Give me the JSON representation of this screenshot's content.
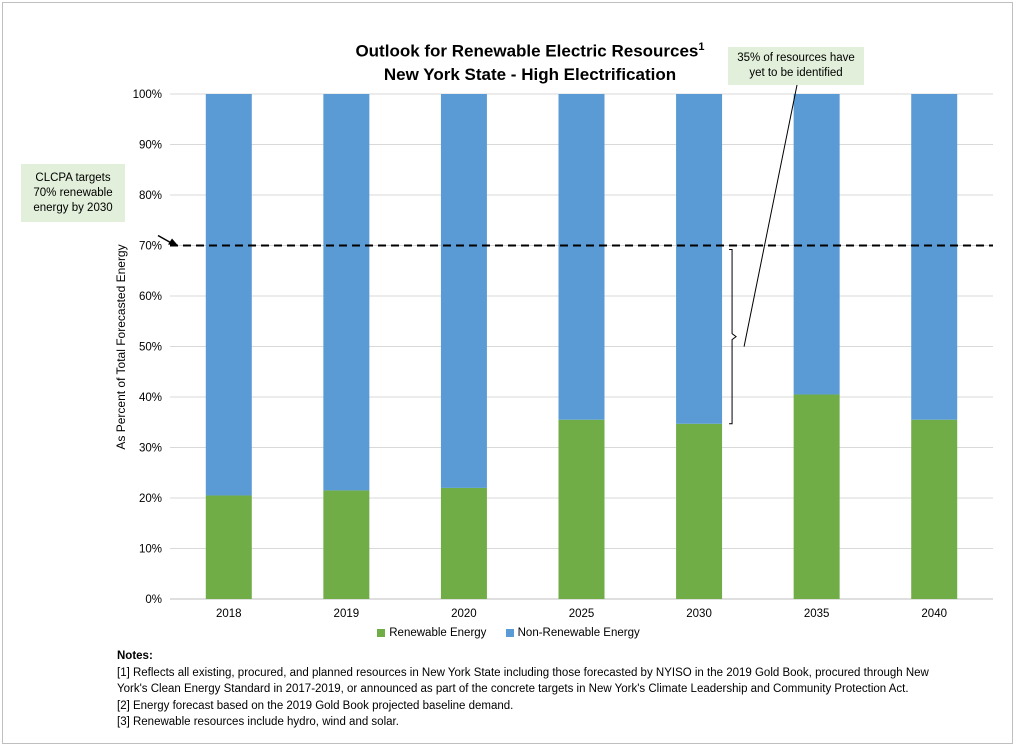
{
  "chart_data": {
    "type": "bar",
    "stacked": true,
    "title_line1": "Outlook for Renewable Electric Resources",
    "title_sup": "1",
    "title_line2": "New York State - High Electrification",
    "ylabel": "As Percent of Total Forecasted Energy",
    "ylim": [
      0,
      100
    ],
    "yticks": [
      "0%",
      "10%",
      "20%",
      "30%",
      "40%",
      "50%",
      "60%",
      "70%",
      "80%",
      "90%",
      "100%"
    ],
    "categories": [
      "2018",
      "2019",
      "2020",
      "2025",
      "2030",
      "2035",
      "2040"
    ],
    "series": [
      {
        "name": "Renewable Energy",
        "color": "#70ad47",
        "values": [
          20.5,
          21.5,
          22,
          35.5,
          34.7,
          40.5,
          35.5
        ]
      },
      {
        "name": "Non-Renewable Energy",
        "color": "#5b9bd5",
        "values": [
          79.5,
          78.5,
          78,
          64.5,
          65.3,
          59.5,
          64.5
        ]
      }
    ],
    "target_line": {
      "value": 70,
      "style": "dashed"
    },
    "bracket": {
      "category": "2030",
      "from": 34.7,
      "to": 70
    },
    "grid": true,
    "legend_position": "bottom",
    "annotations": {
      "left": [
        "CLCPA targets",
        "70% renewable",
        "energy by 2030"
      ],
      "right": [
        "35% of resources have",
        "yet to be identified"
      ]
    }
  },
  "notes": {
    "title": "Notes:",
    "lines": [
      "[1] Reflects all existing, procured, and planned resources in New York State including those forecasted by NYISO in the 2019 Gold Book, procured through New",
      "York's Clean Energy Standard in 2017-2019, or announced as part of the concrete targets in New York's Climate Leadership and Community Protection Act.",
      "[2] Energy forecast based on the 2019 Gold Book projected baseline demand.",
      "[3] Renewable resources include hydro, wind and solar."
    ]
  }
}
